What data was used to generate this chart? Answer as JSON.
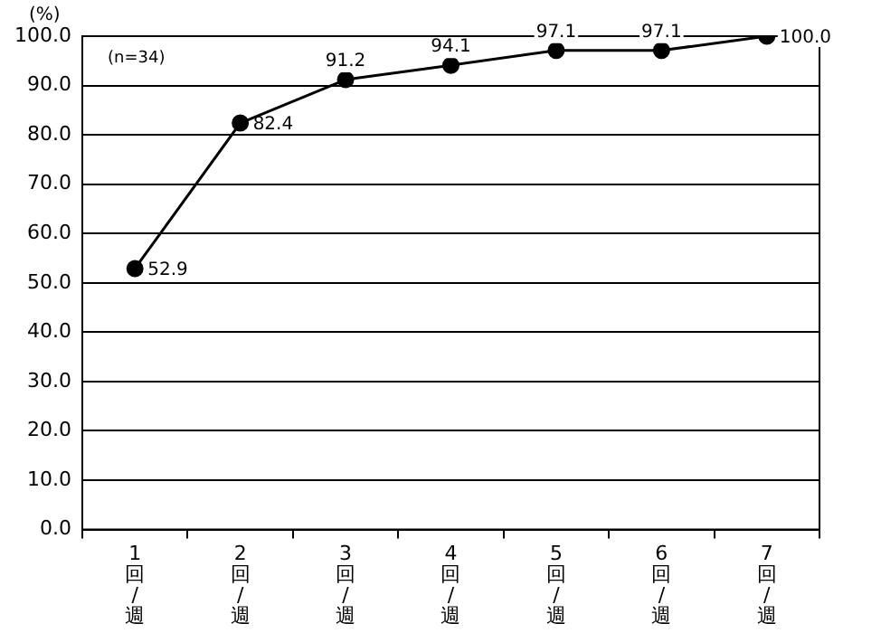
{
  "chart_data": {
    "type": "line",
    "ylabel": "(%)",
    "annotations": [
      "(n=34)"
    ],
    "categories": [
      "1回/週",
      "2回/週",
      "3回/週",
      "4回/週",
      "5回/週",
      "6回/週",
      "7回/週"
    ],
    "series": [
      {
        "color": "#000000",
        "values": [
          52.9,
          82.4,
          91.2,
          94.1,
          97.1,
          97.1,
          100.0
        ]
      }
    ],
    "ylim": [
      0,
      100
    ],
    "yticks": [
      {
        "value": 0,
        "label": "0.0"
      },
      {
        "value": 10,
        "label": "10.0"
      },
      {
        "value": 20,
        "label": "20.0"
      },
      {
        "value": 30,
        "label": "30.0"
      },
      {
        "value": 40,
        "label": "40.0"
      },
      {
        "value": 50,
        "label": "50.0"
      },
      {
        "value": 60,
        "label": "60.0"
      },
      {
        "value": 70,
        "label": "70.0"
      },
      {
        "value": 80,
        "label": "80.0"
      },
      {
        "value": 90,
        "label": "90.0"
      },
      {
        "value": 100,
        "label": "100.0"
      }
    ],
    "value_labels": [
      "52.9",
      "82.4",
      "91.2",
      "94.1",
      "97.1",
      "97.1",
      "100.0"
    ],
    "grid": "y",
    "marker": "circle",
    "line_style": "solid",
    "legend": false
  }
}
